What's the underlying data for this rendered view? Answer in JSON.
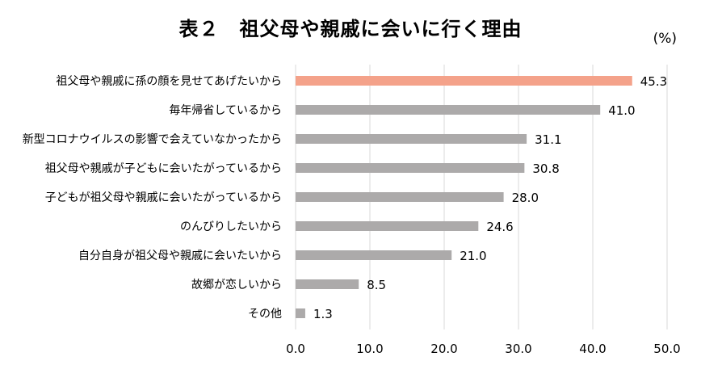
{
  "chart_data": {
    "type": "bar",
    "orientation": "horizontal",
    "title": "表２　祖父母や親戚に会いに行く理由",
    "unit_label": "(%)",
    "categories": [
      "祖父母や親戚に孫の顔を見せてあげたいから",
      "毎年帰省しているから",
      "新型コロナウイルスの影響で会えていなかったから",
      "祖父母や親戚が子どもに会いたがっているから",
      "子どもが祖父母や親戚に会いたがっているから",
      "のんびりしたいから",
      "自分自身が祖父母や親戚に会いたいから",
      "故郷が恋しいから",
      "その他"
    ],
    "values": [
      45.3,
      41.0,
      31.1,
      30.8,
      28.0,
      24.6,
      21.0,
      8.5,
      1.3
    ],
    "value_labels": [
      "45.3",
      "41.0",
      "31.1",
      "30.8",
      "28.0",
      "24.6",
      "21.0",
      "8.5",
      "1.3"
    ],
    "highlight_index": 0,
    "xlim": [
      0,
      50
    ],
    "xticks": [
      0,
      10,
      20,
      30,
      40,
      50
    ],
    "xtick_labels": [
      "0.0",
      "10.0",
      "20.0",
      "30.0",
      "40.0",
      "50.0"
    ],
    "grid": true,
    "colors": {
      "highlight": "#f4a28a",
      "bar": "#acaaaa",
      "grid": "#d9d9d9"
    }
  }
}
